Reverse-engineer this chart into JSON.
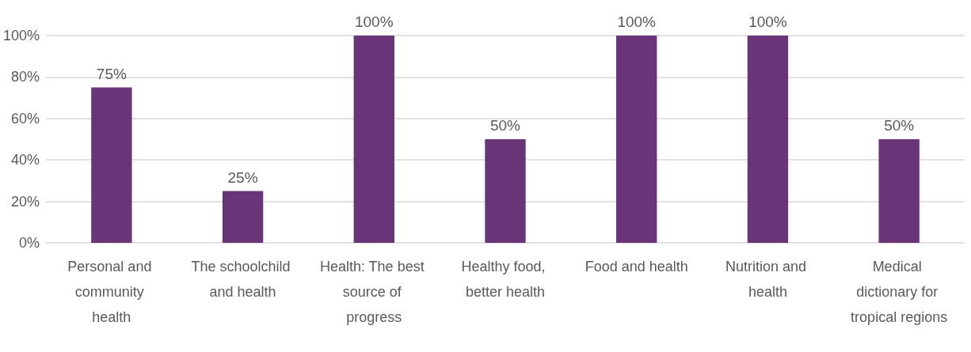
{
  "chart_data": {
    "type": "bar",
    "categories": [
      "Personal and community health",
      "The schoolchild and health",
      "Health: The best source of progress",
      "Healthy food, better health",
      "Food and health",
      "Nutrition and health",
      "Medical dictionary for tropical regions"
    ],
    "values": [
      75,
      25,
      100,
      50,
      100,
      100,
      50
    ],
    "value_labels": [
      "75%",
      "25%",
      "100%",
      "50%",
      "100%",
      "100%",
      "50%"
    ],
    "color": "#6a3479",
    "ylim": [
      0,
      100
    ],
    "yticks": [
      {
        "value": 0,
        "label": "0%"
      },
      {
        "value": 20,
        "label": "20%"
      },
      {
        "value": 40,
        "label": "40%"
      },
      {
        "value": 60,
        "label": "60%"
      },
      {
        "value": 80,
        "label": "80%"
      },
      {
        "value": 100,
        "label": "100%"
      }
    ],
    "grid": "y"
  }
}
